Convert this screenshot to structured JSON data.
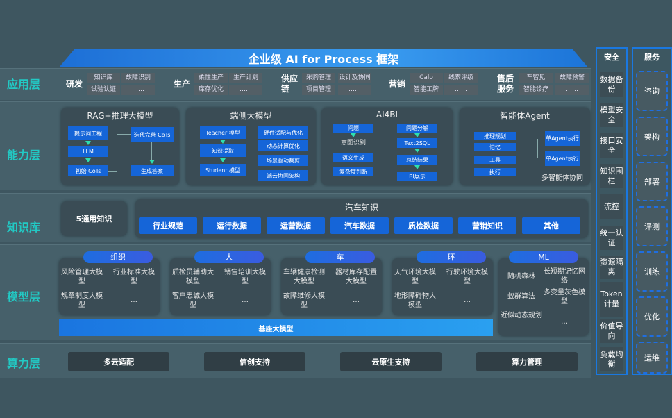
{
  "title": "企业级 AI for Process 框架",
  "layers": {
    "app": "应用层",
    "ability": "能力层",
    "knowledge": "知识库",
    "model": "模型层",
    "compute": "算力层"
  },
  "app_layer": [
    {
      "cat": "研发",
      "items": [
        "知识库",
        "试验认证",
        "故障识别",
        "……"
      ]
    },
    {
      "cat": "生产",
      "items": [
        "柔性生产",
        "库存优化",
        "生产计划",
        "……"
      ]
    },
    {
      "cat": "供应链",
      "items": [
        "采购管理",
        "项目管理",
        "设计及协同",
        "……"
      ]
    },
    {
      "cat": "营销",
      "items": [
        "Calo",
        "智能工牌",
        "线索评级",
        "……"
      ]
    },
    {
      "cat": "售后服务",
      "items": [
        "车智见",
        "智能诊疗",
        "故障预警",
        "……"
      ]
    }
  ],
  "ability": {
    "rag": {
      "title": "RAG+推理大模型",
      "boxes": [
        "提示词工程",
        "LLM",
        "初始 CoTs",
        "迭代完善 CoTs",
        "生成答案"
      ]
    },
    "edge": {
      "title": "端侧大模型",
      "boxes": [
        "Teacher 模型",
        "知识提取",
        "Student 模型",
        "硬件适配与优化",
        "动态计算优化",
        "场景驱动裁剪",
        "端云协同架构"
      ]
    },
    "ai4bi": {
      "title": "AI4BI",
      "boxes": [
        "问题",
        "意图识别",
        "语义生成",
        "复杂度判断",
        "问题分解",
        "Text2SQL",
        "总结结果",
        "BI展示"
      ]
    },
    "agent": {
      "title": "智能体Agent",
      "boxes": [
        "推理规划",
        "记忆",
        "工具",
        "执行",
        "单Agent执行",
        "单Agent执行"
      ],
      "footer": "多智能体协同"
    }
  },
  "knowledge": {
    "general": "5通用知识",
    "auto_title": "汽车知识",
    "auto_items": [
      "行业规范",
      "运行数据",
      "运营数据",
      "汽车数据",
      "质检数据",
      "营销知识",
      "其他"
    ]
  },
  "model": {
    "groups": [
      {
        "pill": "组织",
        "items": [
          "风险管理大模型",
          "行业标准大模型",
          "规章制度大模型",
          "…"
        ]
      },
      {
        "pill": "人",
        "items": [
          "质检员辅助大模型",
          "销售培训大模型",
          "客户忠诚大模型",
          "…"
        ]
      },
      {
        "pill": "车",
        "items": [
          "车辆健康检测大模型",
          "器材库存配置大模型",
          "故障维修大模型",
          "…"
        ]
      },
      {
        "pill": "环",
        "items": [
          "天气环境大模型",
          "行驶环境大模型",
          "地形障碍物大模型",
          "…"
        ]
      }
    ],
    "ml": {
      "pill": "ML",
      "items": [
        "随机森林",
        "长短期记忆网络",
        "蚁群算法",
        "多变量灰色模型",
        "近似动态规划",
        "…"
      ]
    },
    "base": "基座大模型"
  },
  "compute": [
    "多云适配",
    "信创支持",
    "云原生支持",
    "算力管理"
  ],
  "security": {
    "title": "安全",
    "items": [
      "数据备份",
      "模型安全",
      "接口安全",
      "知识围栏",
      "流控",
      "统一认证",
      "资源隔离",
      "Token计量",
      "价值导向",
      "负载均衡"
    ]
  },
  "service": {
    "title": "服务",
    "items": [
      "咨询",
      "架构",
      "部署",
      "评测",
      "训练",
      "优化",
      "运维"
    ]
  },
  "colors": {
    "accent": "#1565d8",
    "label": "#22c9c4",
    "background": "#3e5660"
  }
}
